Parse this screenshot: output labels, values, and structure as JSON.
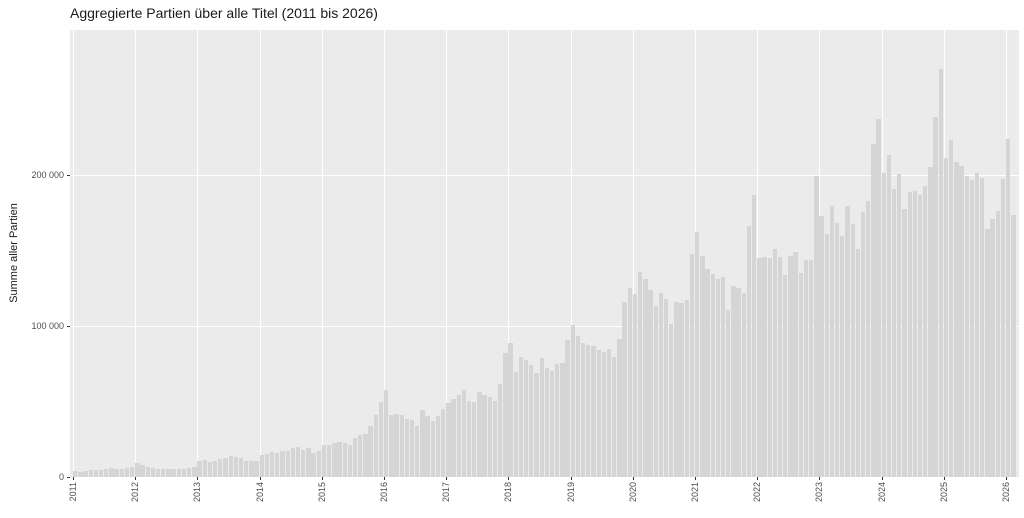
{
  "title": "Aggregierte Partien über alle Titel (2011 bis 2026)",
  "y_axis": {
    "label": "Summe aller Partien",
    "ticks": [
      {
        "label": "0",
        "value": 0
      },
      {
        "label": "100 000",
        "value": 100000
      },
      {
        "label": "200 000",
        "value": 200000
      }
    ]
  },
  "x_axis": {
    "tick_labels": [
      "2011",
      "2012",
      "2013",
      "2014",
      "2015",
      "2016",
      "2017",
      "2018",
      "2019",
      "2020",
      "2021",
      "2022",
      "2023",
      "2024",
      "2025",
      "2026"
    ]
  },
  "colors": {
    "panel_bg": "#EBEBEB",
    "bar_fill": "#D5D5D5",
    "gridline": "#FFFFFF",
    "tick_mark": "#333333",
    "tick_text": "#4D4D4D",
    "title_text": "#1A1A1A",
    "outer_bg": "#FFFFFF"
  },
  "chart_data": {
    "type": "bar",
    "title": "Aggregierte Partien über alle Titel (2011 bis 2026)",
    "xlabel": "",
    "ylabel": "Summe aller Partien",
    "frequency": "monthly",
    "x_start": "2011-01",
    "x_end": "2026-02",
    "ylim": [
      0,
      296000
    ],
    "y_gridlines": [
      0,
      100000,
      200000
    ],
    "grid": "major-only",
    "legend": "none",
    "years": [
      {
        "year": "2011",
        "values": [
          3800,
          3300,
          4100,
          4500,
          4800,
          4800,
          5400,
          5800,
          5000,
          5400,
          5800,
          6500
        ]
      },
      {
        "year": "2012",
        "values": [
          9500,
          7800,
          6500,
          6000,
          5500,
          5000,
          5000,
          5400,
          5000,
          5400,
          5800,
          6500
        ]
      },
      {
        "year": "2013",
        "values": [
          10500,
          11400,
          9800,
          10900,
          12000,
          12400,
          13600,
          13100,
          12700,
          10500,
          10500,
          10900
        ]
      },
      {
        "year": "2014",
        "values": [
          14700,
          15400,
          16400,
          15800,
          17500,
          17100,
          19300,
          19700,
          18000,
          19300,
          16000,
          17100
        ]
      },
      {
        "year": "2015",
        "values": [
          20900,
          21500,
          22400,
          23000,
          22600,
          20900,
          25700,
          27500,
          28600,
          33600,
          41200,
          49500
        ]
      },
      {
        "year": "2016",
        "values": [
          57300,
          41200,
          41800,
          41200,
          38500,
          37900,
          33600,
          44500,
          40700,
          37400,
          40100,
          45200
        ]
      },
      {
        "year": "2017",
        "values": [
          48900,
          51800,
          54000,
          57700,
          50600,
          50000,
          56600,
          54000,
          52800,
          50200,
          61700,
          82000
        ]
      },
      {
        "year": "2018",
        "values": [
          88600,
          69400,
          79800,
          77600,
          74300,
          68700,
          78700,
          72300,
          70500,
          74900,
          75400,
          90800
        ]
      },
      {
        "year": "2019",
        "values": [
          100800,
          93700,
          88800,
          87500,
          86500,
          84000,
          83000,
          85000,
          79300,
          91500,
          115700,
          125200
        ]
      },
      {
        "year": "2020",
        "values": [
          121300,
          135600,
          131200,
          124000,
          113100,
          121900,
          118000,
          101400,
          116000,
          115000,
          117000,
          147700
        ]
      },
      {
        "year": "2021",
        "values": [
          162100,
          146600,
          137800,
          134500,
          131200,
          132700,
          110700,
          126800,
          125200,
          122000,
          166000,
          187000
        ]
      },
      {
        "year": "2022",
        "values": [
          145100,
          145500,
          145100,
          151000,
          145900,
          134000,
          146600,
          148800,
          135000,
          144000,
          143800,
          199600
        ]
      },
      {
        "year": "2023",
        "values": [
          173100,
          160900,
          179700,
          168200,
          159400,
          179300,
          167500,
          151000,
          175300,
          183000,
          220500,
          237100
        ]
      },
      {
        "year": "2024",
        "values": [
          201300,
          213200,
          190700,
          200600,
          177500,
          188500,
          189600,
          187000,
          192500,
          205500,
          238600,
          270200
        ]
      },
      {
        "year": "2025",
        "values": [
          211500,
          223200,
          208600,
          205900,
          199200,
          196500,
          201100,
          198000,
          164300,
          170900,
          176000,
          197400
        ]
      },
      {
        "year": "2026",
        "values": [
          223900,
          173800
        ]
      }
    ]
  }
}
